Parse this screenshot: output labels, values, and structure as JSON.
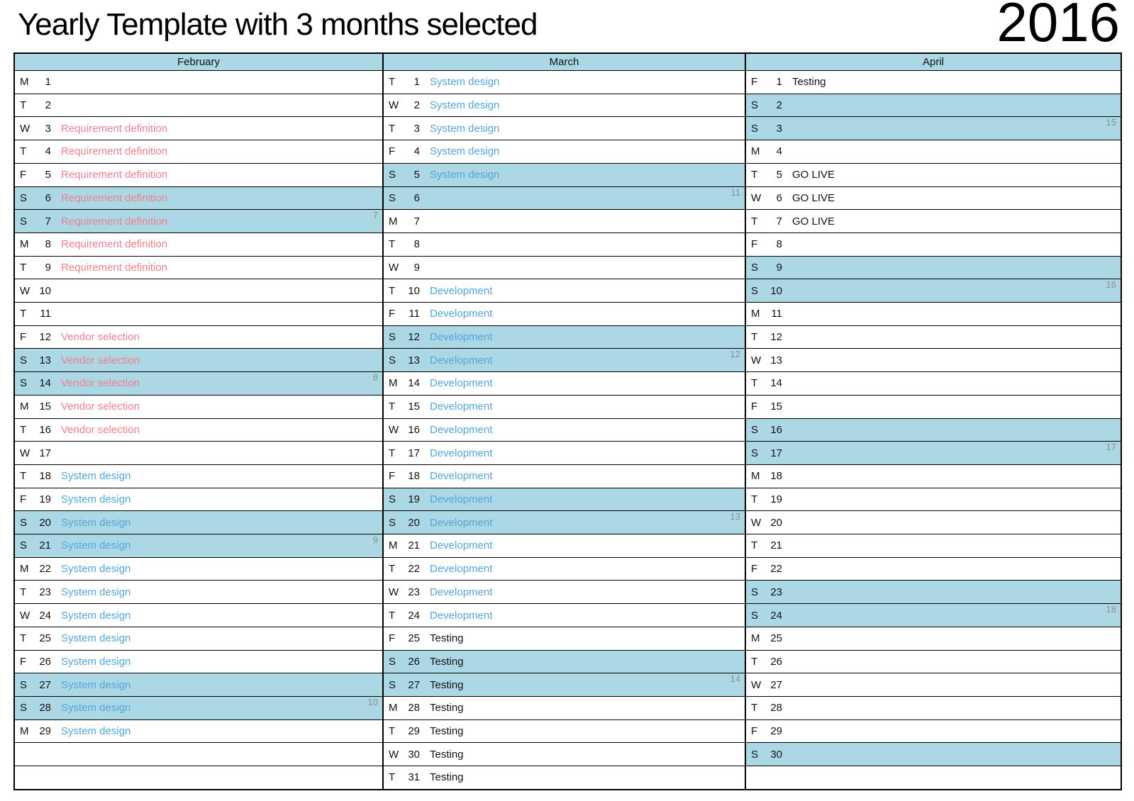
{
  "calendar": {
    "title": "Yearly Template with 3 months selected",
    "year": "2016",
    "colors": {
      "pink": "#ee7f8d",
      "blue": "#54a5dc",
      "black": "#121212",
      "header_blue": "#acd8e5",
      "week_number_gray": "#8e8e8e"
    },
    "months": [
      {
        "name": "February",
        "rows": [
          {
            "dow": "M",
            "day": "1",
            "event": "",
            "color": "",
            "weekend": false,
            "week": ""
          },
          {
            "dow": "T",
            "day": "2",
            "event": "",
            "color": "",
            "weekend": false,
            "week": ""
          },
          {
            "dow": "W",
            "day": "3",
            "event": "Requirement definition",
            "color": "pink",
            "weekend": false,
            "week": ""
          },
          {
            "dow": "T",
            "day": "4",
            "event": "Requirement definition",
            "color": "pink",
            "weekend": false,
            "week": ""
          },
          {
            "dow": "F",
            "day": "5",
            "event": "Requirement definition",
            "color": "pink",
            "weekend": false,
            "week": ""
          },
          {
            "dow": "S",
            "day": "6",
            "event": "Requirement definition",
            "color": "pink",
            "weekend": true,
            "week": ""
          },
          {
            "dow": "S",
            "day": "7",
            "event": "Requirement definition",
            "color": "pink",
            "weekend": true,
            "week": "7"
          },
          {
            "dow": "M",
            "day": "8",
            "event": "Requirement definition",
            "color": "pink",
            "weekend": false,
            "week": ""
          },
          {
            "dow": "T",
            "day": "9",
            "event": "Requirement definition",
            "color": "pink",
            "weekend": false,
            "week": ""
          },
          {
            "dow": "W",
            "day": "10",
            "event": "",
            "color": "",
            "weekend": false,
            "week": ""
          },
          {
            "dow": "T",
            "day": "11",
            "event": "",
            "color": "",
            "weekend": false,
            "week": ""
          },
          {
            "dow": "F",
            "day": "12",
            "event": "Vendor selection",
            "color": "pink",
            "weekend": false,
            "week": ""
          },
          {
            "dow": "S",
            "day": "13",
            "event": "Vendor selection",
            "color": "pink",
            "weekend": true,
            "week": ""
          },
          {
            "dow": "S",
            "day": "14",
            "event": "Vendor selection",
            "color": "pink",
            "weekend": true,
            "week": "8"
          },
          {
            "dow": "M",
            "day": "15",
            "event": "Vendor selection",
            "color": "pink",
            "weekend": false,
            "week": ""
          },
          {
            "dow": "T",
            "day": "16",
            "event": "Vendor selection",
            "color": "pink",
            "weekend": false,
            "week": ""
          },
          {
            "dow": "W",
            "day": "17",
            "event": "",
            "color": "",
            "weekend": false,
            "week": ""
          },
          {
            "dow": "T",
            "day": "18",
            "event": "System design",
            "color": "blue",
            "weekend": false,
            "week": ""
          },
          {
            "dow": "F",
            "day": "19",
            "event": "System design",
            "color": "blue",
            "weekend": false,
            "week": ""
          },
          {
            "dow": "S",
            "day": "20",
            "event": "System design",
            "color": "blue",
            "weekend": true,
            "week": ""
          },
          {
            "dow": "S",
            "day": "21",
            "event": "System design",
            "color": "blue",
            "weekend": true,
            "week": "9"
          },
          {
            "dow": "M",
            "day": "22",
            "event": "System design",
            "color": "blue",
            "weekend": false,
            "week": ""
          },
          {
            "dow": "T",
            "day": "23",
            "event": "System design",
            "color": "blue",
            "weekend": false,
            "week": ""
          },
          {
            "dow": "W",
            "day": "24",
            "event": "System design",
            "color": "blue",
            "weekend": false,
            "week": ""
          },
          {
            "dow": "T",
            "day": "25",
            "event": "System design",
            "color": "blue",
            "weekend": false,
            "week": ""
          },
          {
            "dow": "F",
            "day": "26",
            "event": "System design",
            "color": "blue",
            "weekend": false,
            "week": ""
          },
          {
            "dow": "S",
            "day": "27",
            "event": "System design",
            "color": "blue",
            "weekend": true,
            "week": ""
          },
          {
            "dow": "S",
            "day": "28",
            "event": "System design",
            "color": "blue",
            "weekend": true,
            "week": "10"
          },
          {
            "dow": "M",
            "day": "29",
            "event": "System design",
            "color": "blue",
            "weekend": false,
            "week": ""
          },
          {
            "dow": "",
            "day": "",
            "event": "",
            "color": "",
            "weekend": false,
            "week": ""
          },
          {
            "dow": "",
            "day": "",
            "event": "",
            "color": "",
            "weekend": false,
            "week": ""
          }
        ]
      },
      {
        "name": "March",
        "rows": [
          {
            "dow": "T",
            "day": "1",
            "event": "System design",
            "color": "blue",
            "weekend": false,
            "week": ""
          },
          {
            "dow": "W",
            "day": "2",
            "event": "System design",
            "color": "blue",
            "weekend": false,
            "week": ""
          },
          {
            "dow": "T",
            "day": "3",
            "event": "System design",
            "color": "blue",
            "weekend": false,
            "week": ""
          },
          {
            "dow": "F",
            "day": "4",
            "event": "System design",
            "color": "blue",
            "weekend": false,
            "week": ""
          },
          {
            "dow": "S",
            "day": "5",
            "event": "System design",
            "color": "blue",
            "weekend": true,
            "week": ""
          },
          {
            "dow": "S",
            "day": "6",
            "event": "",
            "color": "",
            "weekend": true,
            "week": "11"
          },
          {
            "dow": "M",
            "day": "7",
            "event": "",
            "color": "",
            "weekend": false,
            "week": ""
          },
          {
            "dow": "T",
            "day": "8",
            "event": "",
            "color": "",
            "weekend": false,
            "week": ""
          },
          {
            "dow": "W",
            "day": "9",
            "event": "",
            "color": "",
            "weekend": false,
            "week": ""
          },
          {
            "dow": "T",
            "day": "10",
            "event": "Development",
            "color": "blue",
            "weekend": false,
            "week": ""
          },
          {
            "dow": "F",
            "day": "11",
            "event": "Development",
            "color": "blue",
            "weekend": false,
            "week": ""
          },
          {
            "dow": "S",
            "day": "12",
            "event": "Development",
            "color": "blue",
            "weekend": true,
            "week": ""
          },
          {
            "dow": "S",
            "day": "13",
            "event": "Development",
            "color": "blue",
            "weekend": true,
            "week": "12"
          },
          {
            "dow": "M",
            "day": "14",
            "event": "Development",
            "color": "blue",
            "weekend": false,
            "week": ""
          },
          {
            "dow": "T",
            "day": "15",
            "event": "Development",
            "color": "blue",
            "weekend": false,
            "week": ""
          },
          {
            "dow": "W",
            "day": "16",
            "event": "Development",
            "color": "blue",
            "weekend": false,
            "week": ""
          },
          {
            "dow": "T",
            "day": "17",
            "event": "Development",
            "color": "blue",
            "weekend": false,
            "week": ""
          },
          {
            "dow": "F",
            "day": "18",
            "event": "Development",
            "color": "blue",
            "weekend": false,
            "week": ""
          },
          {
            "dow": "S",
            "day": "19",
            "event": "Development",
            "color": "blue",
            "weekend": true,
            "week": ""
          },
          {
            "dow": "S",
            "day": "20",
            "event": "Development",
            "color": "blue",
            "weekend": true,
            "week": "13"
          },
          {
            "dow": "M",
            "day": "21",
            "event": "Development",
            "color": "blue",
            "weekend": false,
            "week": ""
          },
          {
            "dow": "T",
            "day": "22",
            "event": "Development",
            "color": "blue",
            "weekend": false,
            "week": ""
          },
          {
            "dow": "W",
            "day": "23",
            "event": "Development",
            "color": "blue",
            "weekend": false,
            "week": ""
          },
          {
            "dow": "T",
            "day": "24",
            "event": "Development",
            "color": "blue",
            "weekend": false,
            "week": ""
          },
          {
            "dow": "F",
            "day": "25",
            "event": "Testing",
            "color": "black",
            "weekend": false,
            "week": ""
          },
          {
            "dow": "S",
            "day": "26",
            "event": "Testing",
            "color": "black",
            "weekend": true,
            "week": ""
          },
          {
            "dow": "S",
            "day": "27",
            "event": "Testing",
            "color": "black",
            "weekend": true,
            "week": "14"
          },
          {
            "dow": "M",
            "day": "28",
            "event": "Testing",
            "color": "black",
            "weekend": false,
            "week": ""
          },
          {
            "dow": "T",
            "day": "29",
            "event": "Testing",
            "color": "black",
            "weekend": false,
            "week": ""
          },
          {
            "dow": "W",
            "day": "30",
            "event": "Testing",
            "color": "black",
            "weekend": false,
            "week": ""
          },
          {
            "dow": "T",
            "day": "31",
            "event": "Testing",
            "color": "black",
            "weekend": false,
            "week": ""
          }
        ]
      },
      {
        "name": "April",
        "rows": [
          {
            "dow": "F",
            "day": "1",
            "event": "Testing",
            "color": "black",
            "weekend": false,
            "week": ""
          },
          {
            "dow": "S",
            "day": "2",
            "event": "",
            "color": "",
            "weekend": true,
            "week": ""
          },
          {
            "dow": "S",
            "day": "3",
            "event": "",
            "color": "",
            "weekend": true,
            "week": "15"
          },
          {
            "dow": "M",
            "day": "4",
            "event": "",
            "color": "",
            "weekend": false,
            "week": ""
          },
          {
            "dow": "T",
            "day": "5",
            "event": "GO LIVE",
            "color": "black",
            "weekend": false,
            "week": ""
          },
          {
            "dow": "W",
            "day": "6",
            "event": "GO LIVE",
            "color": "black",
            "weekend": false,
            "week": ""
          },
          {
            "dow": "T",
            "day": "7",
            "event": "GO LIVE",
            "color": "black",
            "weekend": false,
            "week": ""
          },
          {
            "dow": "F",
            "day": "8",
            "event": "",
            "color": "",
            "weekend": false,
            "week": ""
          },
          {
            "dow": "S",
            "day": "9",
            "event": "",
            "color": "",
            "weekend": true,
            "week": ""
          },
          {
            "dow": "S",
            "day": "10",
            "event": "",
            "color": "",
            "weekend": true,
            "week": "16"
          },
          {
            "dow": "M",
            "day": "11",
            "event": "",
            "color": "",
            "weekend": false,
            "week": ""
          },
          {
            "dow": "T",
            "day": "12",
            "event": "",
            "color": "",
            "weekend": false,
            "week": ""
          },
          {
            "dow": "W",
            "day": "13",
            "event": "",
            "color": "",
            "weekend": false,
            "week": ""
          },
          {
            "dow": "T",
            "day": "14",
            "event": "",
            "color": "",
            "weekend": false,
            "week": ""
          },
          {
            "dow": "F",
            "day": "15",
            "event": "",
            "color": "",
            "weekend": false,
            "week": ""
          },
          {
            "dow": "S",
            "day": "16",
            "event": "",
            "color": "",
            "weekend": true,
            "week": ""
          },
          {
            "dow": "S",
            "day": "17",
            "event": "",
            "color": "",
            "weekend": true,
            "week": "17"
          },
          {
            "dow": "M",
            "day": "18",
            "event": "",
            "color": "",
            "weekend": false,
            "week": ""
          },
          {
            "dow": "T",
            "day": "19",
            "event": "",
            "color": "",
            "weekend": false,
            "week": ""
          },
          {
            "dow": "W",
            "day": "20",
            "event": "",
            "color": "",
            "weekend": false,
            "week": ""
          },
          {
            "dow": "T",
            "day": "21",
            "event": "",
            "color": "",
            "weekend": false,
            "week": ""
          },
          {
            "dow": "F",
            "day": "22",
            "event": "",
            "color": "",
            "weekend": false,
            "week": ""
          },
          {
            "dow": "S",
            "day": "23",
            "event": "",
            "color": "",
            "weekend": true,
            "week": ""
          },
          {
            "dow": "S",
            "day": "24",
            "event": "",
            "color": "",
            "weekend": true,
            "week": "18"
          },
          {
            "dow": "M",
            "day": "25",
            "event": "",
            "color": "",
            "weekend": false,
            "week": ""
          },
          {
            "dow": "T",
            "day": "26",
            "event": "",
            "color": "",
            "weekend": false,
            "week": ""
          },
          {
            "dow": "W",
            "day": "27",
            "event": "",
            "color": "",
            "weekend": false,
            "week": ""
          },
          {
            "dow": "T",
            "day": "28",
            "event": "",
            "color": "",
            "weekend": false,
            "week": ""
          },
          {
            "dow": "F",
            "day": "29",
            "event": "",
            "color": "",
            "weekend": false,
            "week": ""
          },
          {
            "dow": "S",
            "day": "30",
            "event": "",
            "color": "",
            "weekend": true,
            "week": ""
          },
          {
            "dow": "",
            "day": "",
            "event": "",
            "color": "",
            "weekend": false,
            "week": ""
          }
        ]
      }
    ]
  }
}
